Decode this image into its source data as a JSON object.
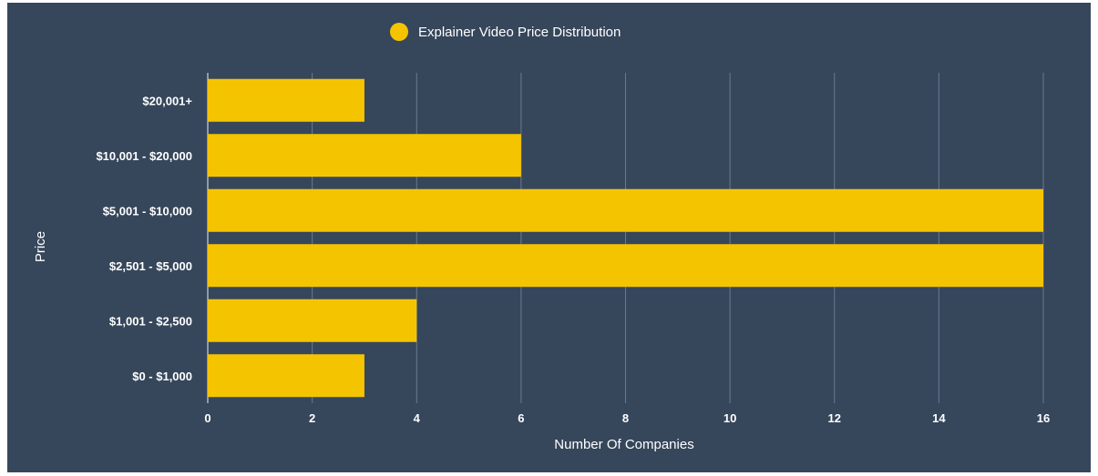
{
  "colors": {
    "background": "#36465b",
    "bar": "#f5c400",
    "grid": "#6b7a8c",
    "text": "#ffffff"
  },
  "chart_data": {
    "type": "bar",
    "orientation": "horizontal",
    "title": "",
    "legend": {
      "position": "top-center",
      "entries": [
        "Explainer Video Price Distribution"
      ]
    },
    "categories": [
      "$0 - $1,000",
      "$1,001 - $2,500",
      "$2,501 - $5,000",
      "$5,001 - $10,000",
      "$10,001 - $20,000",
      "$20,001+"
    ],
    "series": [
      {
        "name": "Explainer Video Price Distribution",
        "values": [
          3,
          4,
          16,
          16,
          6,
          3
        ]
      }
    ],
    "xlabel": "Number Of Companies",
    "ylabel": "Price",
    "xlim": [
      0,
      16
    ],
    "xticks": [
      "0",
      "2",
      "4",
      "6",
      "8",
      "10",
      "12",
      "14",
      "16"
    ],
    "grid": "vertical"
  }
}
